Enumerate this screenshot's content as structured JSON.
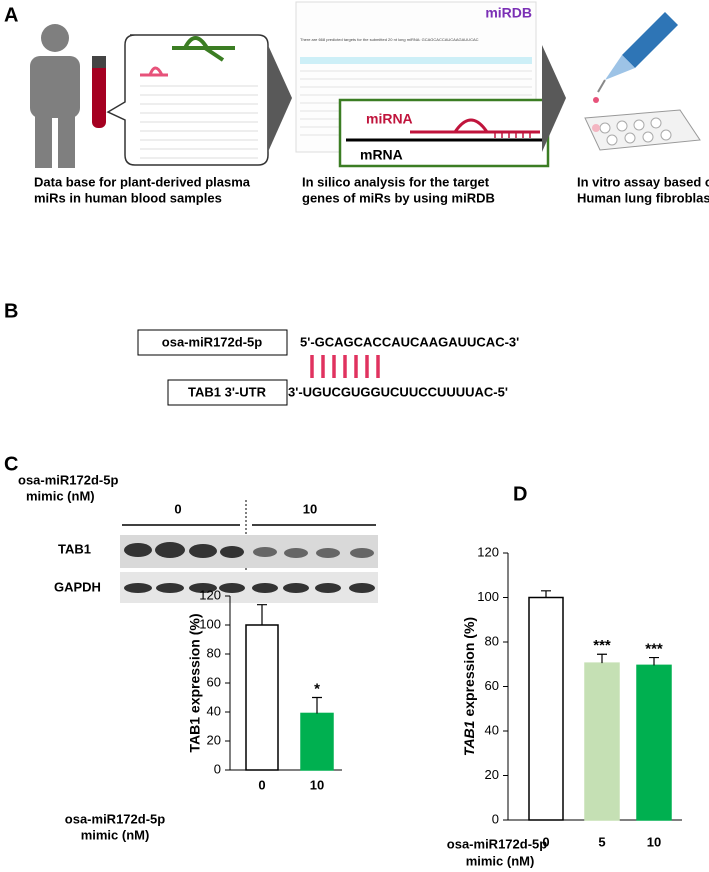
{
  "panels": [
    {
      "label": "A",
      "captions": [
        [
          "Data base for plant-derived plasma",
          "miRs in human blood samples"
        ],
        [
          "In silico analysis for the target",
          "genes of miRs by using miRDB"
        ],
        [
          "In vitro assay based on",
          "Human lung fibroblasts"
        ]
      ],
      "logo": "miRDB",
      "screenshot_title": "There are 668 predicted targets for the submitted 20 nt long miRNA: GCAGCACCAUCAAGAUUCAC",
      "mirna": "miRNA",
      "mrna": "mRNA"
    },
    {
      "label": "B",
      "mirna_name": "osa-miR172d-5p",
      "mirna_seq": "5'-GCAGCACCAUCAAGAUUCAC-3'",
      "target_name": "TAB1 3'-UTR",
      "target_seq": "3'-UGUCGUGGUCUUCCUUUUAC-5'"
    },
    {
      "label": "C",
      "treatment": [
        "osa-miR172d-5p",
        "mimic  (nM)"
      ],
      "doses": [
        "0",
        "10"
      ],
      "bands": [
        "TAB1",
        "GAPDH"
      ]
    },
    {
      "label": "D"
    }
  ],
  "chart_data": [
    {
      "type": "bar",
      "ylabel": "TAB1 expression (%)",
      "xlabel": [
        "osa-miR172d-5p",
        "mimic  (nM)"
      ],
      "categories": [
        "0",
        "10"
      ],
      "values": [
        100,
        39
      ],
      "errors": [
        14,
        11
      ],
      "annotations": [
        null,
        "*"
      ],
      "colors": [
        "#ffffff",
        "#00b050"
      ],
      "ylim": [
        0,
        120
      ],
      "yticks": [
        0,
        20,
        40,
        60,
        80,
        100,
        120
      ]
    },
    {
      "type": "bar",
      "ylabel": [
        "TAB1",
        "expression (%)"
      ],
      "xlabel": [
        "osa-miR172d-5p",
        "mimic  (nM)"
      ],
      "categories": [
        "0",
        "5",
        "10"
      ],
      "values": [
        100,
        70.5,
        69.5
      ],
      "errors": [
        3,
        4,
        3.5
      ],
      "annotations": [
        null,
        "***",
        "***"
      ],
      "colors": [
        "#ffffff",
        "#c5e0b4",
        "#00b050"
      ],
      "ylim": [
        0,
        120
      ],
      "yticks": [
        0,
        20,
        40,
        60,
        80,
        100,
        120
      ]
    }
  ]
}
